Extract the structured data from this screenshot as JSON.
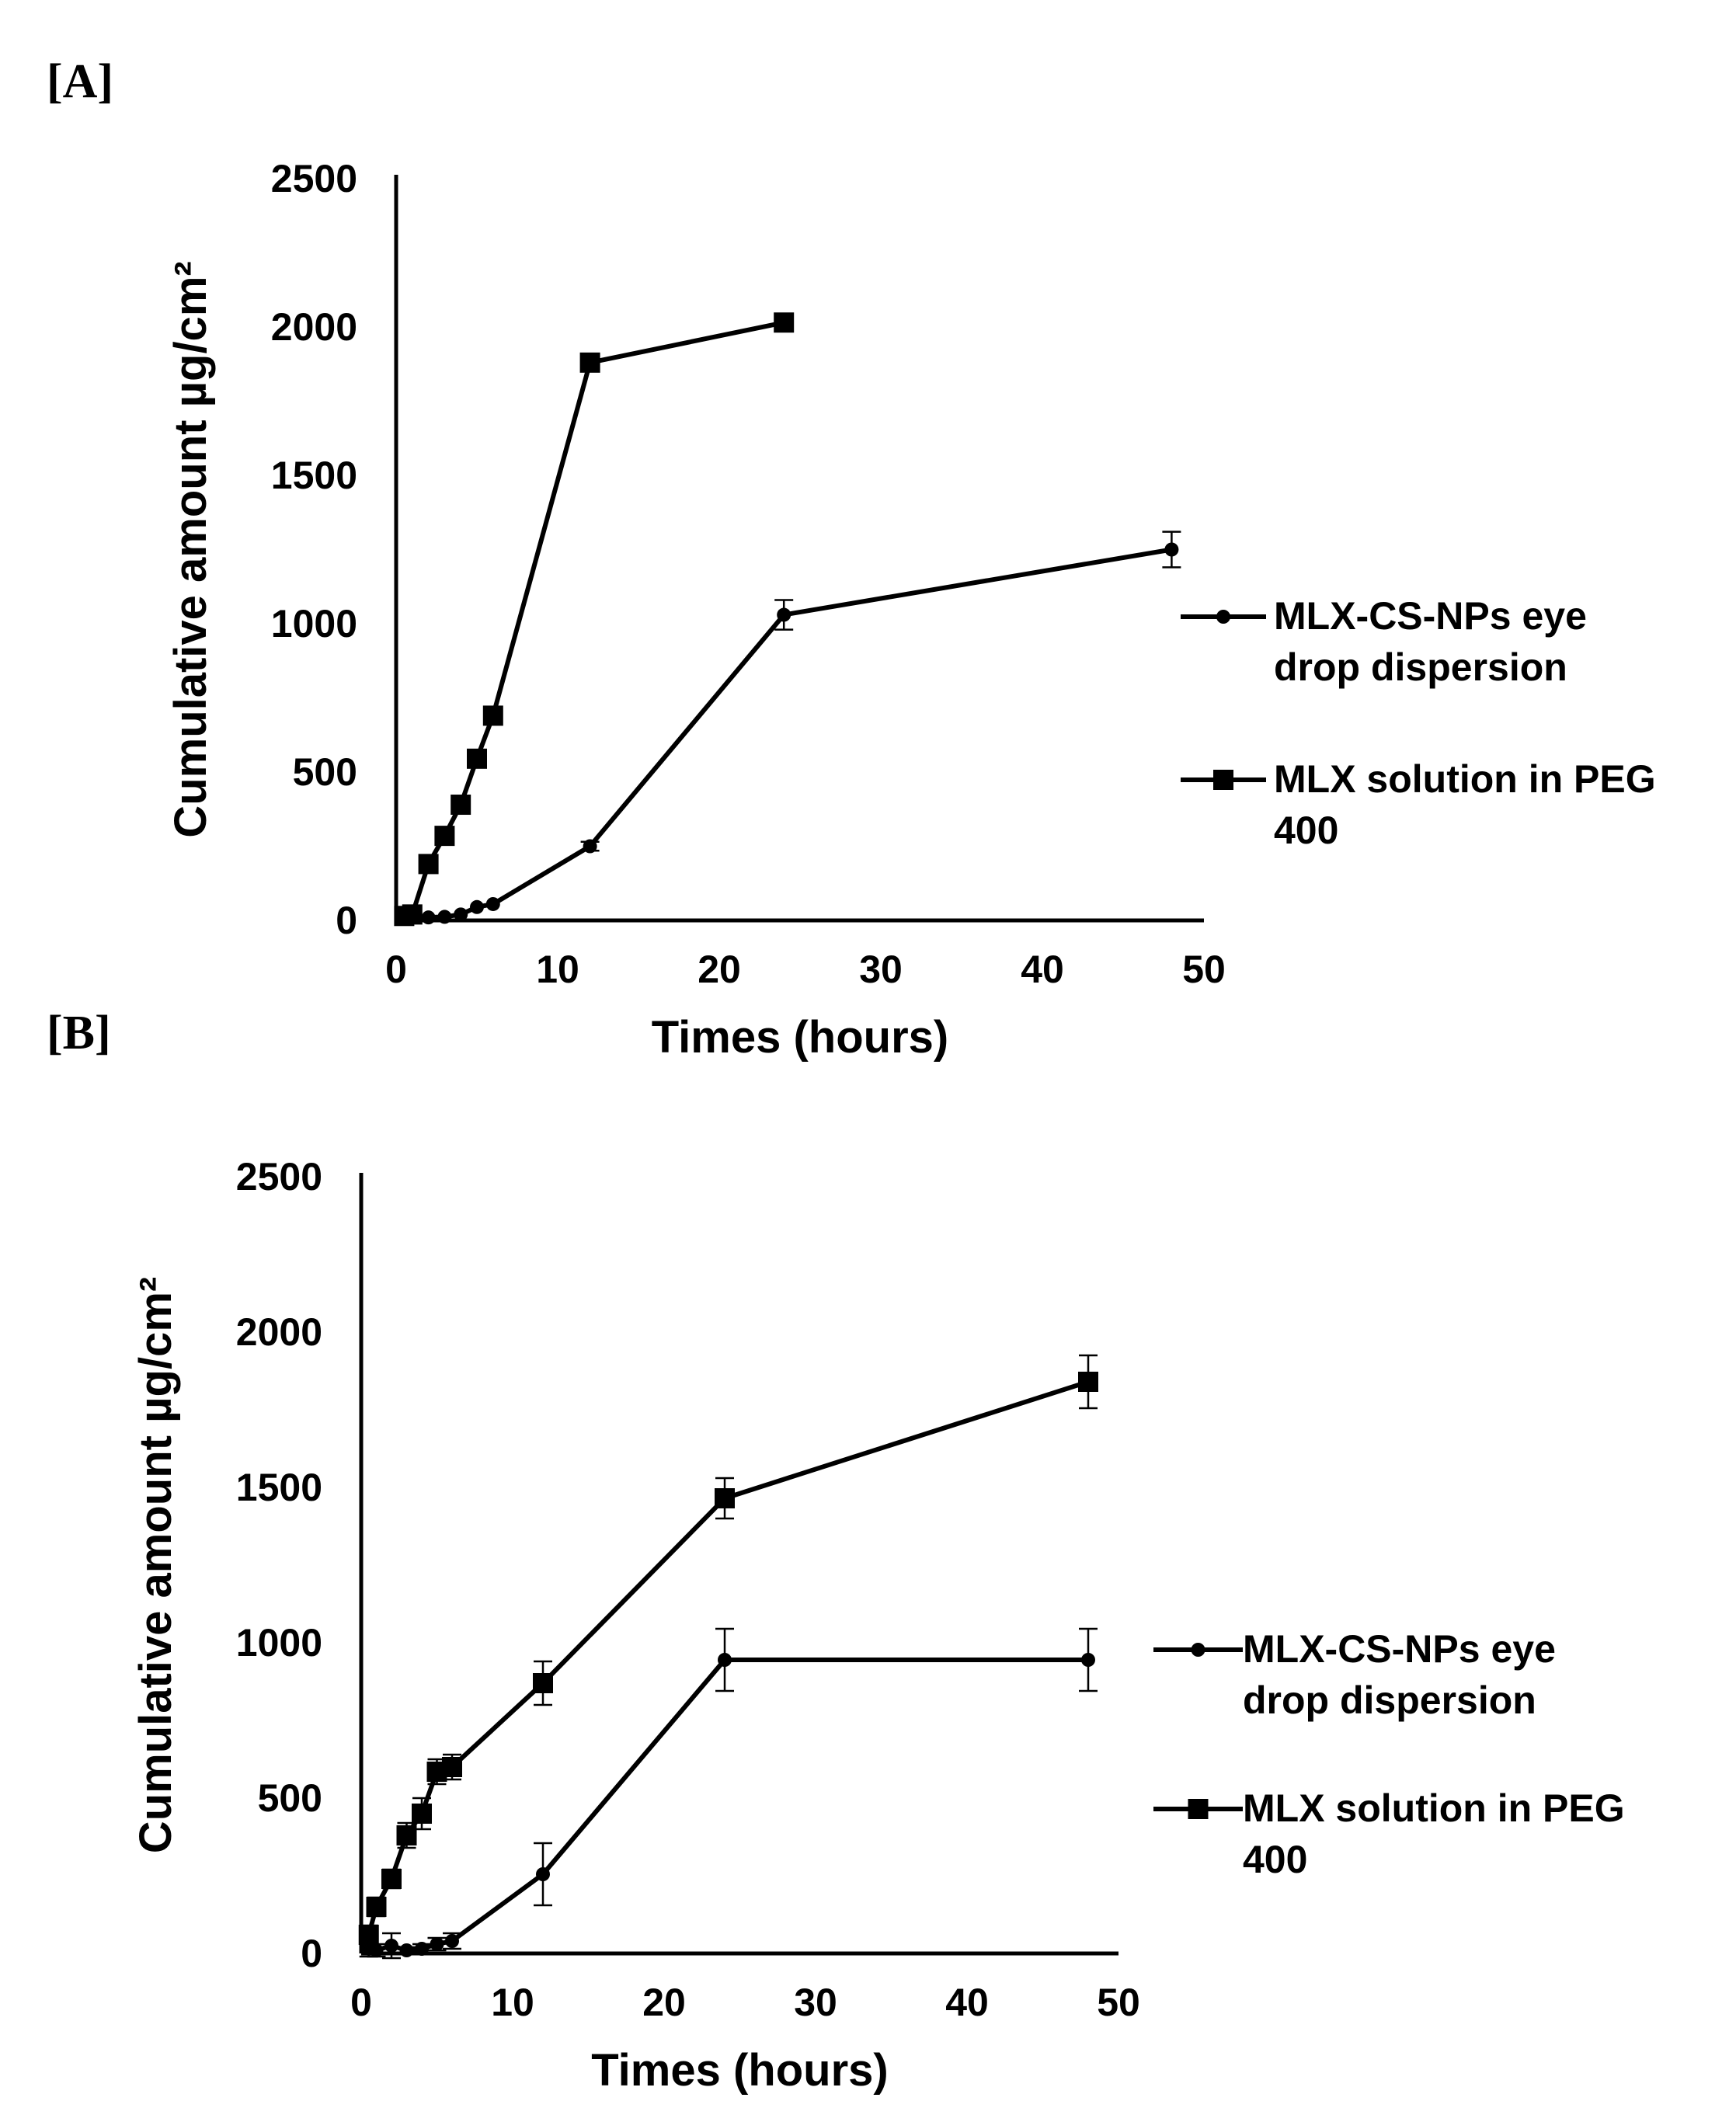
{
  "chart_data": [
    {
      "panel": "[A]",
      "type": "line",
      "xlabel": "Times (hours)",
      "ylabel": "Cumulative amount µg/cm²",
      "xlim": [
        0,
        50
      ],
      "ylim": [
        0,
        2500
      ],
      "xticks": [
        "0",
        "10",
        "20",
        "30",
        "40",
        "50"
      ],
      "yticks": [
        "0",
        "500",
        "1000",
        "1500",
        "2000",
        "2500"
      ],
      "legend_position": "right",
      "series": [
        {
          "name": "MLX-CS-NPs eye drop dispersion",
          "legend_lines": [
            "MLX-CS-NPs eye",
            "drop dispersion"
          ],
          "marker": "circle",
          "x": [
            0.5,
            1,
            2,
            3,
            4,
            5,
            6,
            12,
            24,
            48
          ],
          "y": [
            10,
            15,
            10,
            12,
            20,
            45,
            55,
            250,
            1030,
            1250
          ],
          "err": [
            0,
            0,
            0,
            0,
            0,
            0,
            0,
            15,
            50,
            60
          ]
        },
        {
          "name": "MLX solution in PEG 400",
          "legend_lines": [
            "MLX solution in PEG",
            "400"
          ],
          "marker": "square",
          "x": [
            0.5,
            1,
            2,
            3,
            4,
            5,
            6,
            12,
            24
          ],
          "y": [
            15,
            20,
            190,
            285,
            390,
            545,
            690,
            1880,
            2015
          ],
          "err": [
            0,
            0,
            0,
            0,
            0,
            0,
            0,
            0,
            0
          ]
        }
      ]
    },
    {
      "panel": "[B]",
      "type": "line",
      "xlabel": "Times (hours)",
      "ylabel": "Cumulative amount µg/cm²",
      "xlim": [
        0,
        50
      ],
      "ylim": [
        0,
        2500
      ],
      "xticks": [
        "0",
        "10",
        "20",
        "30",
        "40",
        "50"
      ],
      "yticks": [
        "0",
        "500",
        "1000",
        "1500",
        "2000",
        "2500"
      ],
      "legend_position": "right",
      "series": [
        {
          "name": "MLX-CS-NPs eye drop dispersion",
          "legend_lines": [
            "MLX-CS-NPs eye",
            "drop dispersion"
          ],
          "marker": "circle",
          "x": [
            0.5,
            1,
            2,
            3,
            4,
            5,
            6,
            12,
            24,
            48
          ],
          "y": [
            20,
            10,
            25,
            10,
            15,
            30,
            40,
            255,
            945,
            945
          ],
          "err": [
            30,
            20,
            40,
            10,
            15,
            20,
            25,
            100,
            100,
            100
          ]
        },
        {
          "name": "MLX solution in PEG 400",
          "legend_lines": [
            "MLX solution in PEG",
            "400"
          ],
          "marker": "square",
          "x": [
            0.5,
            1,
            2,
            3,
            4,
            5,
            6,
            12,
            24,
            48
          ],
          "y": [
            60,
            150,
            240,
            380,
            450,
            585,
            600,
            870,
            1465,
            1840
          ],
          "err": [
            30,
            30,
            30,
            40,
            50,
            40,
            40,
            70,
            65,
            85
          ]
        }
      ]
    }
  ]
}
